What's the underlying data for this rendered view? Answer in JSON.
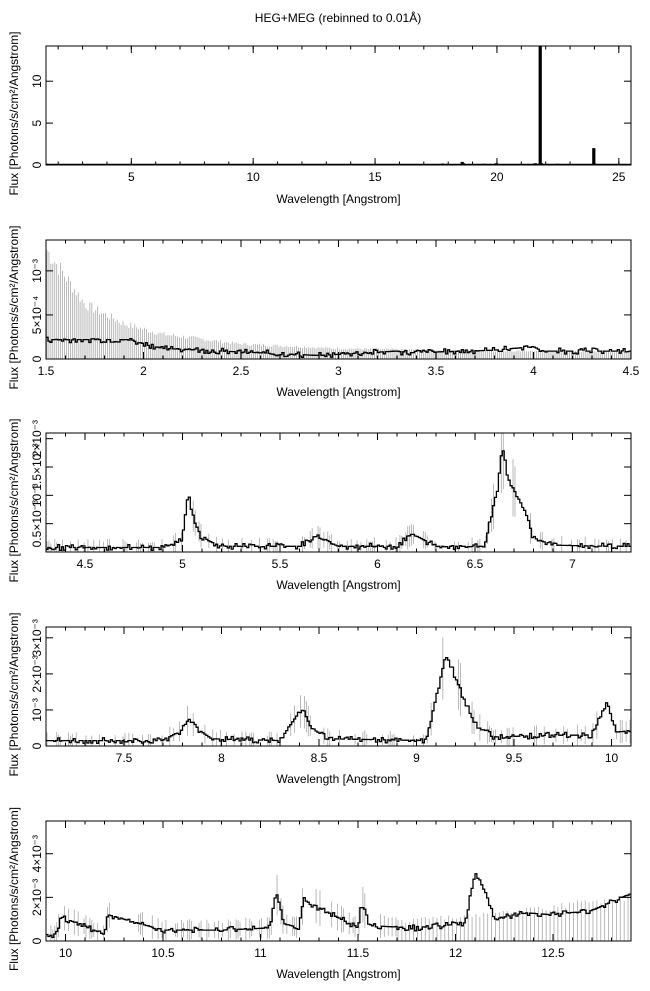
{
  "figure_title": "HEG+MEG (rebinned to 0.01Å)",
  "chart_data": [
    {
      "type": "line",
      "panel": "overview",
      "xlabel": "Wavelength [Angstrom]",
      "ylabel": "Flux [Photons/s/cm²/Angstrom]",
      "xlim": [
        1.5,
        25.5
      ],
      "ylim": [
        0,
        14.2
      ],
      "xticks": [
        5,
        10,
        15,
        20,
        25
      ],
      "xtick_labels": [
        "5",
        "10",
        "15",
        "20",
        "25"
      ],
      "yticks": [
        0,
        5,
        10
      ],
      "ytick_labels": [
        "0",
        "5",
        "10"
      ],
      "series": [
        {
          "name": "spectrum",
          "baseline": 0.03,
          "x": [
            1.5,
            5,
            10,
            15,
            17.8,
            18.6,
            18.65,
            19.5,
            20.0,
            21.6,
            21.8,
            21.82,
            22.5,
            24.0,
            24.02,
            25.5
          ],
          "y": [
            0.05,
            0.04,
            0.03,
            0.04,
            0.06,
            0.25,
            0.08,
            0.05,
            0.08,
            0.1,
            14.2,
            0.1,
            0.05,
            1.9,
            0.05,
            0.04
          ]
        }
      ]
    },
    {
      "type": "line",
      "panel": "1.5-4.5",
      "xlabel": "Wavelength [Angstrom]",
      "ylabel": "Flux [Photons/s/cm²/Angstrom]",
      "xlim": [
        1.5,
        4.5
      ],
      "ylim": [
        0,
        0.00135
      ],
      "xticks": [
        1.5,
        2,
        2.5,
        3,
        3.5,
        4,
        4.5
      ],
      "xtick_labels": [
        "1.5",
        "2",
        "2.5",
        "3",
        "3.5",
        "4",
        "4.5"
      ],
      "yticks": [
        0,
        0.0005,
        0.001
      ],
      "ytick_labels": [
        "0",
        "5×10⁻⁴",
        "10⁻³"
      ],
      "series": [
        {
          "name": "spectrum",
          "baseline": 2e-05,
          "x": [
            1.9,
            1.92,
            2.1,
            2.9,
            3.3,
            3.35,
            3.8,
            3.9,
            4.0,
            4.05
          ],
          "y": [
            0.00022,
            0.00022,
            0.00012,
            4e-05,
            9e-05,
            7e-05,
            0.0001,
            0.00012,
            0.00014,
            9e-05
          ]
        }
      ],
      "upper_limits": {
        "x": [
          1.5,
          1.7,
          1.9,
          2.1,
          2.5,
          3.0,
          3.5,
          4.0,
          4.5
        ],
        "y": [
          0.00125,
          0.00062,
          0.0004,
          0.00028,
          0.00017,
          0.00012,
          0.0001,
          9e-05,
          8e-05
        ]
      }
    },
    {
      "type": "line",
      "panel": "4.3-7.3",
      "xlabel": "Wavelength [Angstrom]",
      "ylabel": "Flux [Photons/s/cm²/Angstrom]",
      "xlim": [
        4.3,
        7.3
      ],
      "ylim": [
        0,
        0.0021
      ],
      "xticks": [
        4.5,
        5,
        5.5,
        6,
        6.5,
        7
      ],
      "xtick_labels": [
        "4.5",
        "5",
        "5.5",
        "6",
        "6.5",
        "7"
      ],
      "yticks": [
        0.0005,
        0.001,
        0.0015,
        0.002
      ],
      "ytick_labels": [
        "0.5×10⁻³",
        "10⁻³",
        "1.5×10⁻³",
        "2×10⁻³"
      ],
      "series": [
        {
          "name": "spectrum",
          "baseline": 8e-05,
          "x": [
            4.9,
            5.0,
            5.03,
            5.06,
            5.1,
            5.2,
            5.6,
            5.68,
            5.8,
            6.1,
            6.18,
            6.3,
            6.55,
            6.62,
            6.64,
            6.67,
            6.7,
            6.73,
            6.76,
            6.8,
            6.9,
            7.2
          ],
          "y": [
            8e-05,
            0.0002,
            0.00105,
            0.00055,
            0.00025,
            0.0001,
            0.0001,
            0.00028,
            0.0001,
            0.0001,
            0.00032,
            0.0001,
            0.0001,
            0.0012,
            0.00188,
            0.0013,
            0.0011,
            0.0009,
            0.0007,
            0.00025,
            0.00012,
            0.0001
          ]
        }
      ]
    },
    {
      "type": "line",
      "panel": "7.1-10.1",
      "xlabel": "Wavelength [Angstrom]",
      "ylabel": "Flux [Photons/s/cm²/Angstrom]",
      "xlim": [
        7.1,
        10.1
      ],
      "ylim": [
        0,
        0.0033
      ],
      "xticks": [
        7.5,
        8,
        8.5,
        9,
        9.5,
        10
      ],
      "xtick_labels": [
        "7.5",
        "8",
        "8.5",
        "9",
        "9.5",
        "10"
      ],
      "yticks": [
        0,
        0.001,
        0.002,
        0.003
      ],
      "ytick_labels": [
        "0",
        "10⁻³",
        "2×10⁻³",
        "3×10⁻³"
      ],
      "series": [
        {
          "name": "spectrum",
          "baseline": 0.00015,
          "x": [
            7.7,
            7.8,
            7.83,
            7.87,
            7.95,
            8.3,
            8.4,
            8.42,
            8.46,
            8.55,
            9.05,
            9.12,
            9.15,
            9.18,
            9.2,
            9.23,
            9.26,
            9.3,
            9.4,
            9.7,
            9.9,
            9.98,
            10.02
          ],
          "y": [
            0.00015,
            0.00045,
            0.00075,
            0.0005,
            0.0002,
            0.00015,
            0.00095,
            0.001,
            0.0005,
            0.0002,
            0.00015,
            0.0018,
            0.0025,
            0.0022,
            0.0019,
            0.0015,
            0.0011,
            0.0006,
            0.00025,
            0.0003,
            0.0003,
            0.0012,
            0.0004
          ]
        }
      ]
    },
    {
      "type": "line",
      "panel": "9.9-12.9",
      "xlabel": "Wavelength [Angstrom]",
      "ylabel": "Flux [Photons/s/cm²/Angstrom]",
      "xlim": [
        9.9,
        12.9
      ],
      "ylim": [
        0,
        0.0055
      ],
      "xticks": [
        10,
        10.5,
        11,
        11.5,
        12,
        12.5
      ],
      "xtick_labels": [
        "10",
        "10.5",
        "11",
        "11.5",
        "12",
        "12.5"
      ],
      "yticks": [
        0,
        0.002,
        0.004
      ],
      "ytick_labels": [
        "0",
        "2×10⁻³",
        "4×10⁻³"
      ],
      "series": [
        {
          "name": "spectrum",
          "baseline": 0.0003,
          "x": [
            9.95,
            9.98,
            10.2,
            10.22,
            10.5,
            10.8,
            11.05,
            11.08,
            11.12,
            11.2,
            11.22,
            11.5,
            11.52,
            11.56,
            11.8,
            12.05,
            12.1,
            12.14,
            12.2,
            12.35,
            12.5,
            12.7,
            12.88
          ],
          "y": [
            0.0003,
            0.0011,
            0.0003,
            0.0012,
            0.0005,
            0.0005,
            0.0006,
            0.0023,
            0.0008,
            0.0006,
            0.0019,
            0.0006,
            0.0018,
            0.0007,
            0.0006,
            0.0008,
            0.0031,
            0.0025,
            0.001,
            0.0013,
            0.0012,
            0.0014,
            0.0021
          ]
        }
      ],
      "upper_limits": {
        "x": [
          11.7,
          12.0,
          12.3,
          12.6,
          12.9
        ],
        "y": [
          0.0009,
          0.0011,
          0.0013,
          0.0017,
          0.002
        ]
      }
    }
  ]
}
